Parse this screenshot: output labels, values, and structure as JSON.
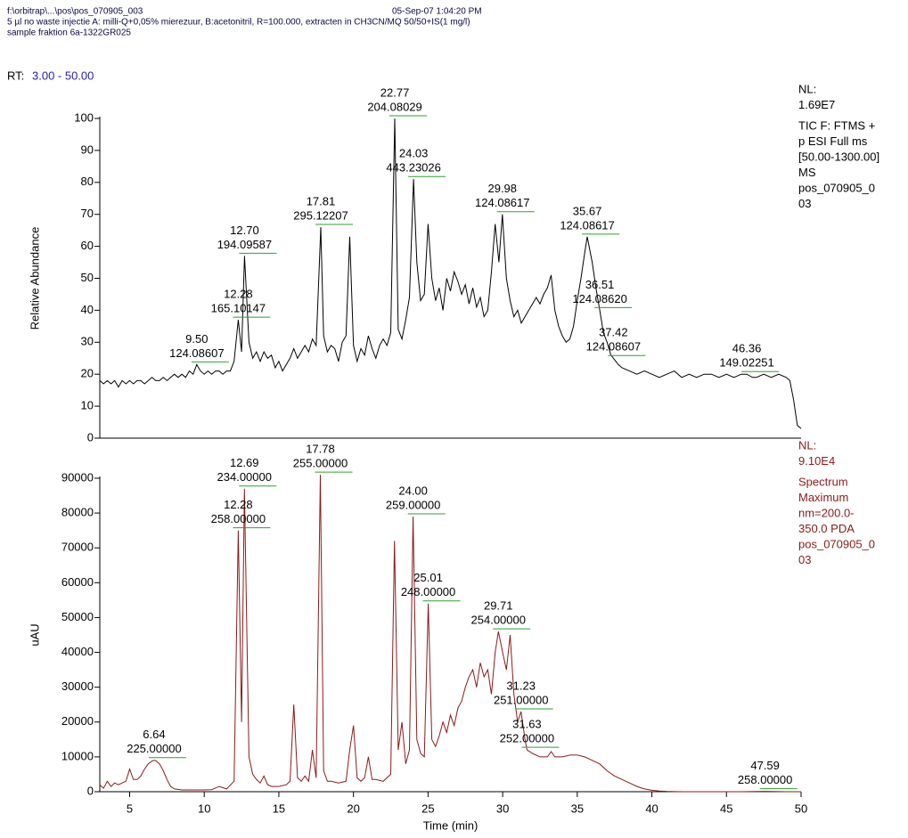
{
  "header": {
    "file": "f:\\orbitrap\\...\\pos\\pos_070905_003",
    "date": "05-Sep-07 1:04:20 PM",
    "line2": "5 µl  no waste injectie A: milli-Q+0,05% mierezuur, B:acetonitril, R=100.000, extracten in CH3CN/MQ 50/50+IS(1 mg/l)",
    "line3": "sample fraktion 6a-1322GR025",
    "rt_label": "RT:",
    "rt_range": "3.00 - 50.00"
  },
  "chart_data": [
    {
      "type": "line",
      "ylabel": "Relative Abundance",
      "color": "#000000",
      "xlim": [
        3,
        50
      ],
      "ylim": [
        0,
        100
      ],
      "yticks": [
        0,
        10,
        20,
        30,
        40,
        50,
        60,
        70,
        80,
        90,
        100
      ],
      "info": [
        "NL:",
        "1.69E7",
        "TIC F: FTMS +",
        "p ESI Full ms",
        "[50.00-1300.00]",
        " MS",
        "pos_070905_0",
        "03"
      ],
      "x": [
        3,
        3.25,
        3.5,
        3.75,
        4,
        4.25,
        4.5,
        4.75,
        5,
        5.25,
        5.5,
        5.75,
        6,
        6.25,
        6.5,
        6.75,
        7,
        7.25,
        7.5,
        7.75,
        8,
        8.25,
        8.5,
        8.75,
        9,
        9.25,
        9.5,
        9.75,
        10,
        10.25,
        10.5,
        10.75,
        11,
        11.25,
        11.5,
        11.75,
        12,
        12.28,
        12.5,
        12.7,
        13,
        13.25,
        13.5,
        13.75,
        14,
        14.25,
        14.5,
        14.75,
        15,
        15.25,
        15.5,
        15.75,
        16,
        16.25,
        16.5,
        16.75,
        17,
        17.25,
        17.5,
        17.81,
        18,
        18.25,
        18.5,
        18.75,
        19,
        19.25,
        19.5,
        19.75,
        20,
        20.25,
        20.5,
        20.75,
        21,
        21.25,
        21.5,
        21.75,
        22,
        22.25,
        22.5,
        22.77,
        23,
        23.25,
        23.5,
        23.75,
        24.03,
        24.25,
        24.5,
        24.75,
        25,
        25.25,
        25.5,
        25.75,
        26,
        26.25,
        26.5,
        26.75,
        27,
        27.25,
        27.5,
        27.75,
        28,
        28.25,
        28.5,
        28.75,
        29,
        29.25,
        29.5,
        29.75,
        29.98,
        30.25,
        30.5,
        30.75,
        31,
        31.25,
        31.5,
        31.75,
        32,
        32.25,
        32.5,
        32.75,
        33,
        33.25,
        33.5,
        33.75,
        34,
        34.25,
        34.5,
        34.75,
        35,
        35.25,
        35.5,
        35.67,
        36,
        36.25,
        36.51,
        36.75,
        37,
        37.25,
        37.42,
        37.75,
        38,
        38.5,
        39,
        39.5,
        40,
        40.5,
        41,
        41.5,
        42,
        42.5,
        43,
        43.5,
        44,
        44.5,
        45,
        45.5,
        46,
        46.36,
        46.75,
        47,
        47.5,
        48,
        48.5,
        49,
        49.25,
        49.5,
        49.75,
        50
      ],
      "values": [
        18,
        17,
        18,
        17,
        18,
        16,
        18,
        17,
        18,
        17,
        18,
        18,
        17,
        18,
        19,
        18,
        18,
        19,
        18,
        19,
        20,
        19,
        20,
        19,
        21,
        20,
        23,
        21,
        20,
        21,
        20,
        21,
        21,
        20,
        21,
        21,
        24,
        37,
        27,
        57,
        30,
        25,
        27,
        24,
        27,
        25,
        26,
        22,
        24,
        21,
        23,
        25,
        28,
        25,
        27,
        29,
        27,
        31,
        29,
        66,
        32,
        27,
        29,
        28,
        24,
        30,
        32,
        63,
        29,
        24,
        28,
        26,
        32,
        28,
        25,
        29,
        31,
        29,
        33,
        100,
        34,
        31,
        37,
        44,
        81,
        55,
        43,
        45,
        67,
        50,
        43,
        47,
        40,
        50,
        46,
        52,
        49,
        45,
        48,
        42,
        47,
        41,
        44,
        38,
        40,
        52,
        67,
        55,
        70,
        50,
        43,
        38,
        40,
        36,
        38,
        40,
        42,
        44,
        42,
        45,
        47,
        51,
        40,
        35,
        32,
        30,
        31,
        35,
        43,
        50,
        58,
        63,
        55,
        47,
        40,
        33,
        30,
        26,
        25,
        23,
        22,
        21,
        20,
        21,
        20,
        19,
        20,
        21,
        19,
        20,
        19,
        20,
        20,
        19,
        20,
        19,
        20,
        20,
        19,
        19,
        20,
        19,
        20,
        19,
        18,
        12,
        4,
        3
      ],
      "annotations": [
        {
          "rt": {
            "value": 9.5,
            "label": "9.50"
          },
          "mass": "124.08607"
        },
        {
          "rt": 12.28,
          "mass": "165.10147"
        },
        {
          "rt": {
            "value": 12.7,
            "label": "12.70"
          },
          "mass": "194.09587"
        },
        {
          "rt": 17.81,
          "mass": "295.12207"
        },
        {
          "rt": 22.77,
          "mass": "204.08029"
        },
        {
          "rt": 24.03,
          "mass": "443.23026"
        },
        {
          "rt": 29.98,
          "mass": "124.08617"
        },
        {
          "rt": 35.67,
          "mass": "124.08617"
        },
        {
          "rt": 36.51,
          "mass": "124.08620"
        },
        {
          "rt": 37.42,
          "mass": "124.08607"
        },
        {
          "rt": 46.36,
          "mass": "149.02251"
        }
      ]
    },
    {
      "type": "line",
      "ylabel": "uAU",
      "xlabel": "Time (min)",
      "color": "#8b1a1a",
      "xlim": [
        3,
        50
      ],
      "xticks": [
        5,
        10,
        15,
        20,
        25,
        30,
        35,
        40,
        45,
        50
      ],
      "ylim": [
        0,
        90000
      ],
      "yticks": [
        0,
        10000,
        20000,
        30000,
        40000,
        50000,
        60000,
        70000,
        80000,
        90000
      ],
      "info": [
        "NL:",
        "9.10E4",
        "Spectrum",
        "Maximum",
        "nm=200.0-",
        "350.0  PDA",
        "pos_070905_0",
        "03"
      ],
      "x": [
        3,
        3.25,
        3.5,
        3.75,
        4,
        4.25,
        4.5,
        4.75,
        5,
        5.25,
        5.5,
        5.75,
        6,
        6.25,
        6.5,
        6.64,
        6.75,
        7,
        7.25,
        7.5,
        7.75,
        8,
        8.5,
        9,
        9.5,
        10,
        10.5,
        11,
        11.5,
        12,
        12.28,
        12.5,
        12.69,
        13,
        13.25,
        13.5,
        13.75,
        14,
        14.25,
        14.5,
        15,
        15.5,
        15.75,
        16,
        16.25,
        16.5,
        16.75,
        17,
        17.25,
        17.5,
        17.78,
        18,
        18.25,
        18.5,
        19,
        19.5,
        19.75,
        20,
        20.25,
        20.5,
        20.75,
        21,
        21.25,
        21.5,
        22,
        22.5,
        22.75,
        23,
        23.25,
        23.5,
        23.75,
        24,
        24.25,
        24.5,
        24.75,
        25.01,
        25.25,
        25.5,
        25.75,
        26,
        26.25,
        26.5,
        26.75,
        27,
        27.25,
        27.5,
        27.75,
        28,
        28.25,
        28.5,
        28.75,
        29,
        29.25,
        29.5,
        29.71,
        30,
        30.25,
        30.5,
        30.75,
        31,
        31.23,
        31.5,
        31.63,
        32,
        32.5,
        33,
        33.25,
        33.5,
        34,
        34.5,
        35,
        35.5,
        36,
        36.5,
        37,
        37.5,
        38,
        38.5,
        39,
        39.5,
        40,
        40.5,
        41,
        42,
        44,
        46,
        47.59,
        49,
        50
      ],
      "values": [
        2000,
        1000,
        3000,
        1500,
        2500,
        2000,
        2500,
        3000,
        6500,
        3500,
        3500,
        4500,
        6500,
        8000,
        8800,
        9000,
        8900,
        8000,
        6000,
        3500,
        1500,
        800,
        500,
        500,
        500,
        500,
        600,
        1500,
        800,
        3000,
        75000,
        20000,
        87000,
        10000,
        5000,
        3500,
        2500,
        4500,
        2000,
        1500,
        1500,
        2000,
        3000,
        25000,
        4000,
        3000,
        4500,
        3000,
        12000,
        4000,
        91000,
        6000,
        3000,
        3000,
        2500,
        3000,
        12000,
        19000,
        4000,
        3000,
        4000,
        10000,
        3500,
        3500,
        3000,
        5000,
        72000,
        12000,
        20000,
        8000,
        12000,
        79000,
        15000,
        11000,
        10000,
        54000,
        15000,
        13000,
        16000,
        20000,
        17000,
        22000,
        19000,
        24000,
        26000,
        30000,
        33000,
        35000,
        30000,
        37000,
        33000,
        35000,
        28000,
        40000,
        46000,
        40000,
        35000,
        45000,
        28000,
        20000,
        23000,
        15000,
        12000,
        11000,
        10000,
        10000,
        11500,
        10000,
        10000,
        10500,
        10500,
        10000,
        9000,
        8000,
        6000,
        4500,
        3500,
        2500,
        1500,
        800,
        400,
        200,
        100,
        0,
        0,
        0,
        100,
        0,
        0
      ],
      "annotations": [
        {
          "rt": 6.64,
          "mass": "225.00000"
        },
        {
          "rt": 12.28,
          "mass": "258.00000"
        },
        {
          "rt": 12.69,
          "mass": "234.00000"
        },
        {
          "rt": 17.78,
          "mass": "255.00000"
        },
        {
          "rt": {
            "value": 24,
            "label": "24.00"
          },
          "mass": "259.00000"
        },
        {
          "rt": 25.01,
          "mass": "248.00000"
        },
        {
          "rt": 29.71,
          "mass": "254.00000"
        },
        {
          "rt": 31.23,
          "mass": "251.00000"
        },
        {
          "rt": 31.63,
          "mass": "252.00000"
        },
        {
          "rt": 47.59,
          "mass": "258.00000"
        }
      ]
    }
  ]
}
